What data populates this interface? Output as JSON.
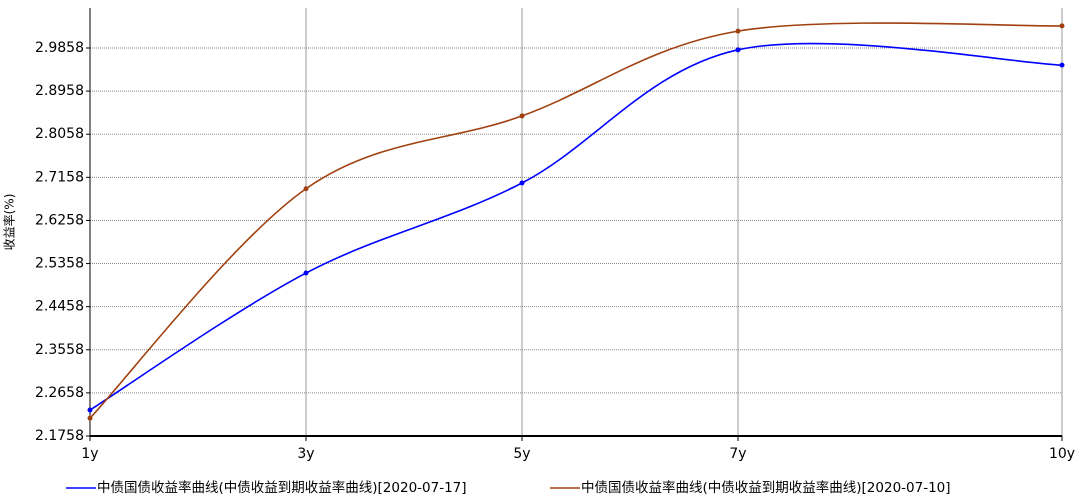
{
  "chart_data": {
    "type": "line",
    "y_label": "收益率(%)",
    "x": [
      1,
      3,
      5,
      7,
      10
    ],
    "xlim": [
      1,
      10
    ],
    "xticks": [
      {
        "value": 1,
        "label": "1y"
      },
      {
        "value": 3,
        "label": "3y"
      },
      {
        "value": 5,
        "label": "5y"
      },
      {
        "value": 7,
        "label": "7y"
      },
      {
        "value": 10,
        "label": "10y"
      }
    ],
    "ylim": [
      2.1758,
      3.0693
    ],
    "yticks": [
      2.1758,
      2.2658,
      2.3558,
      2.4458,
      2.5358,
      2.6258,
      2.7158,
      2.8058,
      2.8958,
      2.9858
    ],
    "grid": true,
    "series": [
      {
        "name": "中债国债收益率曲线(中债收益到期收益率曲线)[2020-07-17]",
        "color": "#0000ff",
        "values": [
          2.23,
          2.516,
          2.704,
          2.982,
          2.95
        ]
      },
      {
        "name": "中债国债收益率曲线(中债收益到期收益率曲线)[2020-07-10]",
        "color": "#a0400f",
        "values": [
          2.213,
          2.692,
          2.844,
          3.021,
          3.032
        ]
      }
    ]
  }
}
